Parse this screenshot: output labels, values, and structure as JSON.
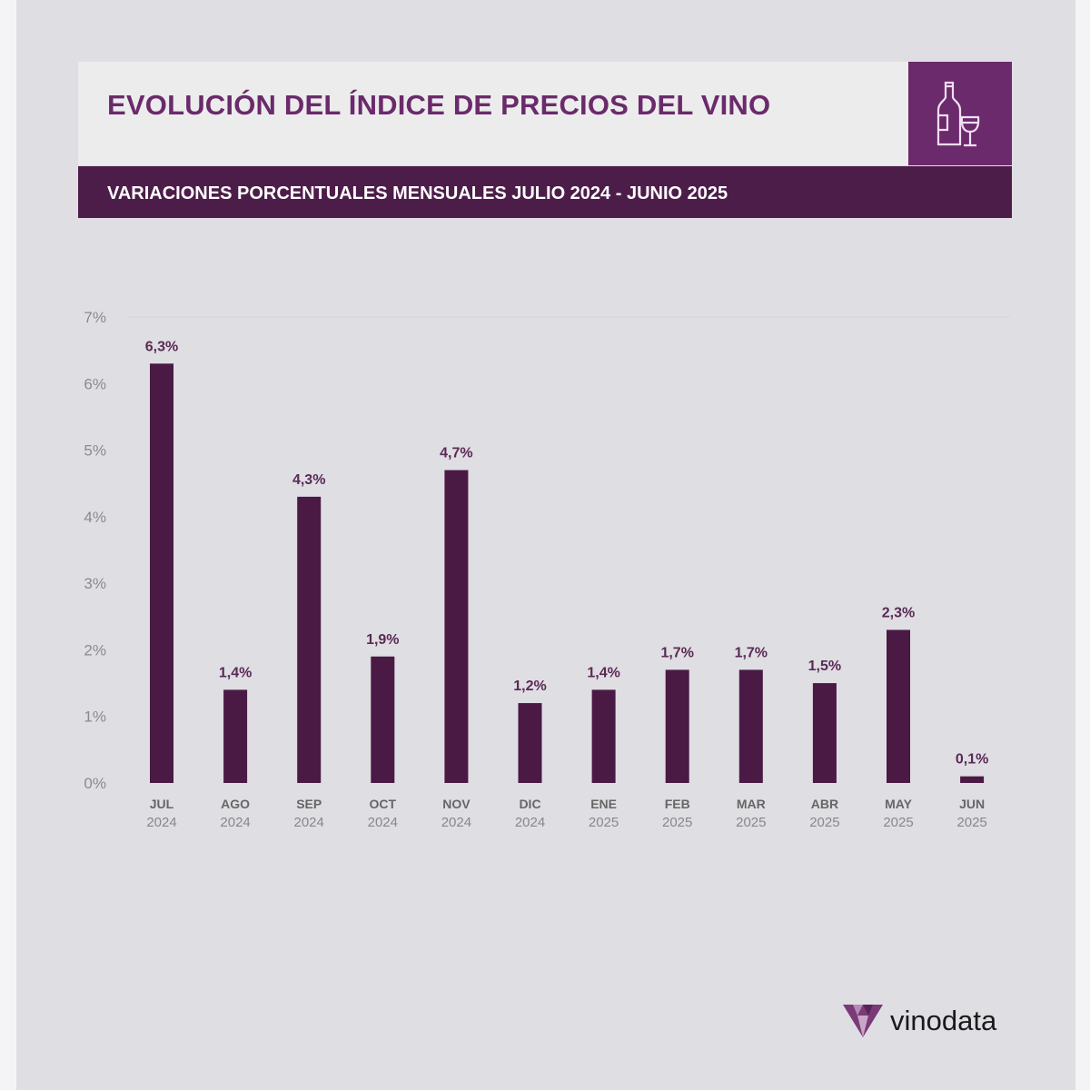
{
  "header": {
    "title": "EVOLUCIÓN DEL ÍNDICE DE PRECIOS DEL VINO",
    "subtitle": "VARIACIONES PORCENTUALES MENSUALES JULIO 2024 - JUNIO 2025",
    "icon": "wine-bottle-glass-icon"
  },
  "brand": {
    "name": "vinodata"
  },
  "colors": {
    "bar": "#4a1a45",
    "accent": "#6b2a6b",
    "dark": "#4d1d49"
  },
  "chart_data": {
    "type": "bar",
    "title": "EVOLUCIÓN DEL ÍNDICE DE PRECIOS DEL VINO",
    "subtitle": "VARIACIONES PORCENTUALES MENSUALES JULIO 2024 - JUNIO 2025",
    "categories": [
      [
        "JUL",
        "2024"
      ],
      [
        "AGO",
        "2024"
      ],
      [
        "SEP",
        "2024"
      ],
      [
        "OCT",
        "2024"
      ],
      [
        "NOV",
        "2024"
      ],
      [
        "DIC",
        "2024"
      ],
      [
        "ENE",
        "2025"
      ],
      [
        "FEB",
        "2025"
      ],
      [
        "MAR",
        "2025"
      ],
      [
        "ABR",
        "2025"
      ],
      [
        "MAY",
        "2025"
      ],
      [
        "JUN",
        "2025"
      ]
    ],
    "values": [
      6.3,
      1.4,
      4.3,
      1.9,
      4.7,
      1.2,
      1.4,
      1.7,
      1.7,
      1.5,
      2.3,
      0.1
    ],
    "data_labels": [
      "6,3%",
      "1,4%",
      "4,3%",
      "1,9%",
      "4,7%",
      "1,2%",
      "1,4%",
      "1,7%",
      "1,7%",
      "1,5%",
      "2,3%",
      "0,1%"
    ],
    "yticks": [
      "0%",
      "1%",
      "2%",
      "3%",
      "4%",
      "5%",
      "6%",
      "7%"
    ],
    "ylim": [
      0,
      7
    ],
    "xlabel": "",
    "ylabel": "",
    "grid": false
  }
}
